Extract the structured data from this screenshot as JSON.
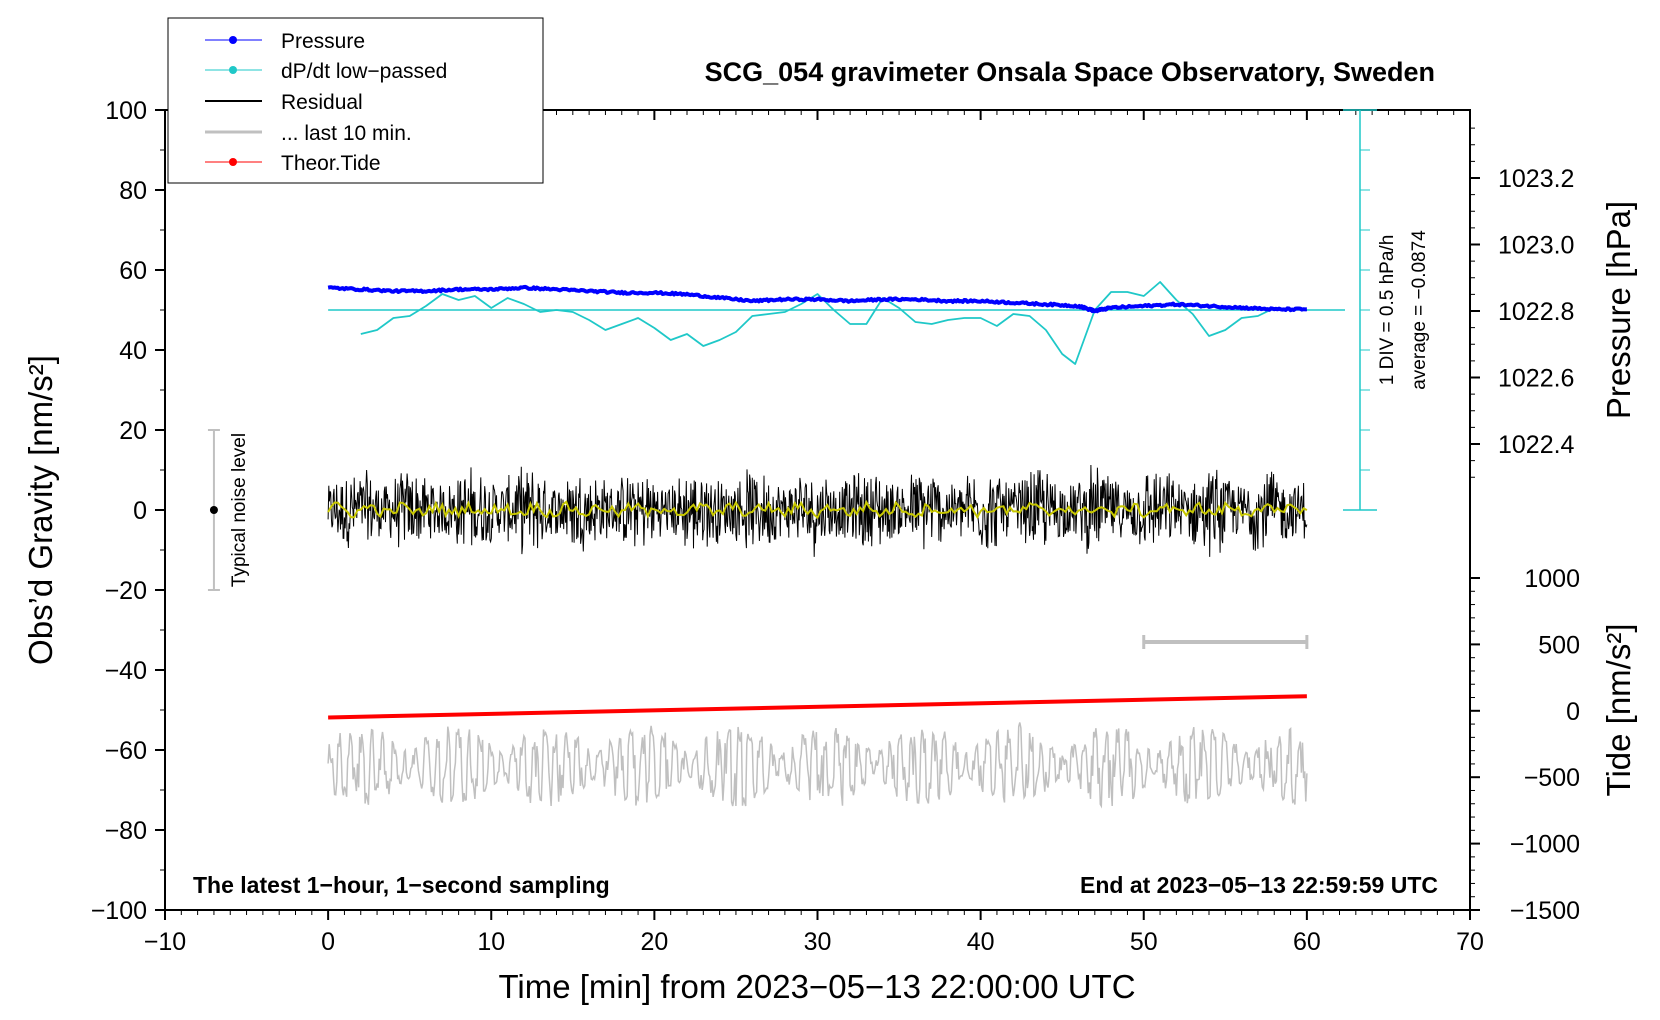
{
  "chart_data": {
    "type": "line",
    "title": "SCG_054 gravimeter Onsala Space Observatory, Sweden",
    "xlabel": "Time [min] from 2023−05−13 22:00:00 UTC",
    "ylabel_left": "Obs’d Gravity [nm/s²]",
    "ylabel_pressure": "Pressure [hPa]",
    "ylabel_tide": "Tide [nm/s²]",
    "xlim": [
      -10,
      70
    ],
    "ylim": [
      -100,
      100
    ],
    "x_ticks": [
      "−10",
      "0",
      "10",
      "20",
      "30",
      "40",
      "50",
      "60",
      "70"
    ],
    "y_ticks": [
      "100",
      "80",
      "60",
      "40",
      "20",
      "0",
      "−20",
      "−40",
      "−60",
      "−80",
      "−100"
    ],
    "pressure_ticks": [
      "1023.2",
      "1023.0",
      "1022.8",
      "1022.6",
      "1022.4"
    ],
    "pressure_tick_values": [
      1023.2,
      1023.0,
      1022.8,
      1022.6,
      1022.4
    ],
    "tide_ticks": [
      "1000",
      "500",
      "0",
      "−500",
      "−1000",
      "−1500"
    ],
    "tide_tick_values": [
      1000,
      500,
      0,
      -500,
      -1000,
      -1500
    ],
    "legend": [
      {
        "label": "Pressure",
        "color": "#0000ff",
        "marker": true
      },
      {
        "label": "dP/dt low−passed",
        "color": "#1fc8c8",
        "marker": true
      },
      {
        "label": "Residual",
        "color": "#000000",
        "marker": false
      },
      {
        "label": "... last 10 min.",
        "color": "#c0c0c0",
        "marker": false
      },
      {
        "label": "Theor.Tide",
        "color": "#ff0000",
        "marker": true
      }
    ],
    "annotations": {
      "footer_left": "The latest 1−hour, 1−second sampling",
      "footer_right": "End at 2023−05−13 22:59:59 UTC",
      "noise_label": "Typical noise level",
      "div_label": "1 DIV = 0.5 hPa/h",
      "avg_label": "average = −0.0874"
    },
    "series": [
      {
        "name": "Pressure",
        "color": "#0000ff",
        "axis": "pressure",
        "x": [
          0,
          2,
          4,
          6,
          8,
          10,
          12,
          14,
          16,
          18,
          20,
          22,
          24,
          26,
          28,
          30,
          32,
          34,
          36,
          38,
          40,
          42,
          44,
          46,
          47,
          48,
          50,
          52,
          54,
          56,
          58,
          60
        ],
        "y": [
          1022.87,
          1022.865,
          1022.86,
          1022.86,
          1022.865,
          1022.865,
          1022.87,
          1022.865,
          1022.86,
          1022.855,
          1022.855,
          1022.85,
          1022.84,
          1022.83,
          1022.835,
          1022.835,
          1022.83,
          1022.835,
          1022.835,
          1022.83,
          1022.83,
          1022.825,
          1022.82,
          1022.815,
          1022.8,
          1022.81,
          1022.815,
          1022.82,
          1022.815,
          1022.81,
          1022.805,
          1022.805
        ]
      },
      {
        "name": "dP/dt low−passed",
        "color": "#1fc8c8",
        "axis": "left",
        "x": [
          2,
          3,
          4,
          5,
          6,
          7,
          8,
          9,
          10,
          11,
          12,
          13,
          14,
          15,
          16,
          17,
          18,
          19,
          20,
          21,
          22,
          23,
          24,
          25,
          26,
          27,
          28,
          29,
          30,
          31,
          32,
          33,
          34,
          35,
          36,
          37,
          38,
          39,
          40,
          41,
          42,
          43,
          44,
          45,
          45.8,
          47,
          48,
          49,
          50,
          51,
          52,
          53,
          54,
          55,
          56,
          57,
          58
        ],
        "y": [
          44,
          45,
          48,
          48.5,
          51,
          54,
          52.5,
          53.5,
          50.5,
          53,
          51.5,
          49.5,
          50,
          49.5,
          47.5,
          45,
          46.5,
          48,
          45.5,
          42.5,
          44,
          41,
          42.5,
          44.5,
          48.5,
          49,
          49.5,
          51.5,
          54,
          50,
          46.5,
          46.5,
          53,
          50.5,
          47,
          46.5,
          47.5,
          48,
          48,
          46,
          49,
          48.5,
          45,
          39,
          36.5,
          50,
          54.5,
          54.5,
          53.5,
          57,
          52.5,
          49,
          43.5,
          45,
          48,
          48.5,
          50.5
        ]
      },
      {
        "name": "Residual",
        "color": "#000000",
        "axis": "left",
        "x_range": [
          0,
          60
        ],
        "amplitude_nm_s2": [
          -18,
          17
        ],
        "baseline": 0
      },
      {
        "name": "Residual low−passed",
        "color": "#c8c800",
        "axis": "left",
        "x_range": [
          0,
          60
        ],
        "amplitude_nm_s2": [
          -2,
          3
        ],
        "baseline": 0
      },
      {
        "name": "... last 10 min.",
        "color": "#c0c0c0",
        "axis": "left",
        "x_range": [
          0,
          60
        ],
        "amplitude_nm_s2": [
          -74,
          -48
        ],
        "baseline": -64
      },
      {
        "name": "Theor.Tide",
        "color": "#ff0000",
        "axis": "tide",
        "x": [
          0,
          60
        ],
        "y": [
          -50,
          110
        ]
      }
    ],
    "noise_bar": {
      "x": -7,
      "y_range": [
        -20,
        20
      ]
    },
    "last10_bar": {
      "x_range": [
        50,
        60
      ],
      "y": -33
    },
    "dpdt_zero_line": 50
  }
}
